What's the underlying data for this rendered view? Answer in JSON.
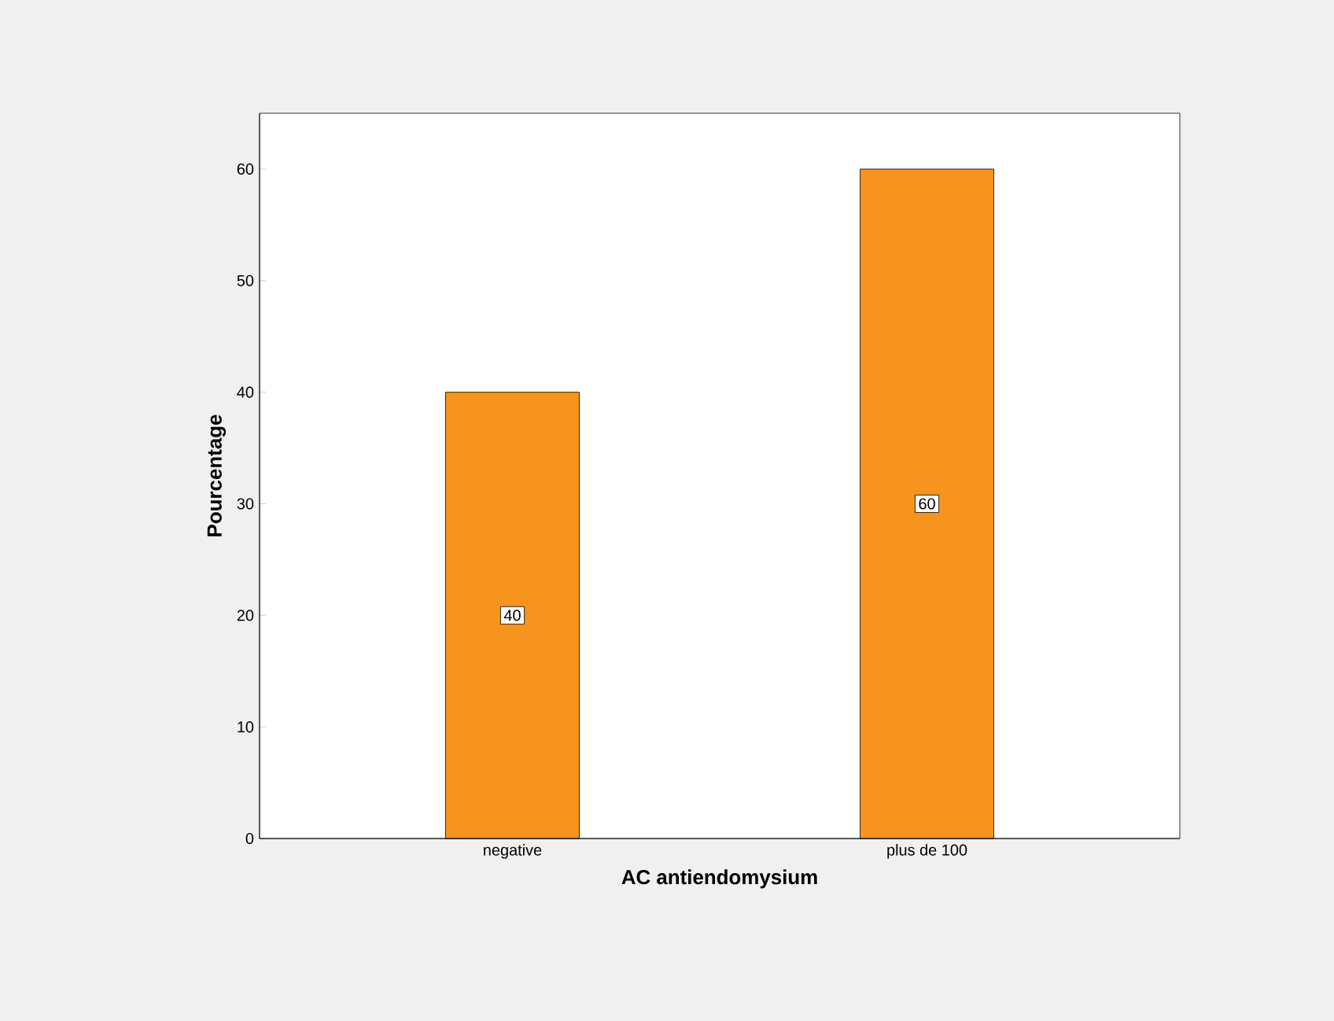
{
  "chart_data": {
    "type": "bar",
    "xlabel": "AC antiendomysium",
    "ylabel": "Pourcentage",
    "categories": [
      "negative",
      "plus de 100"
    ],
    "values": [
      40,
      60
    ],
    "color": "#f7941d",
    "ylim": [
      0,
      65
    ],
    "yticks": [
      0,
      10,
      20,
      30,
      40,
      50,
      60
    ],
    "grid": false,
    "data_labels": true
  }
}
